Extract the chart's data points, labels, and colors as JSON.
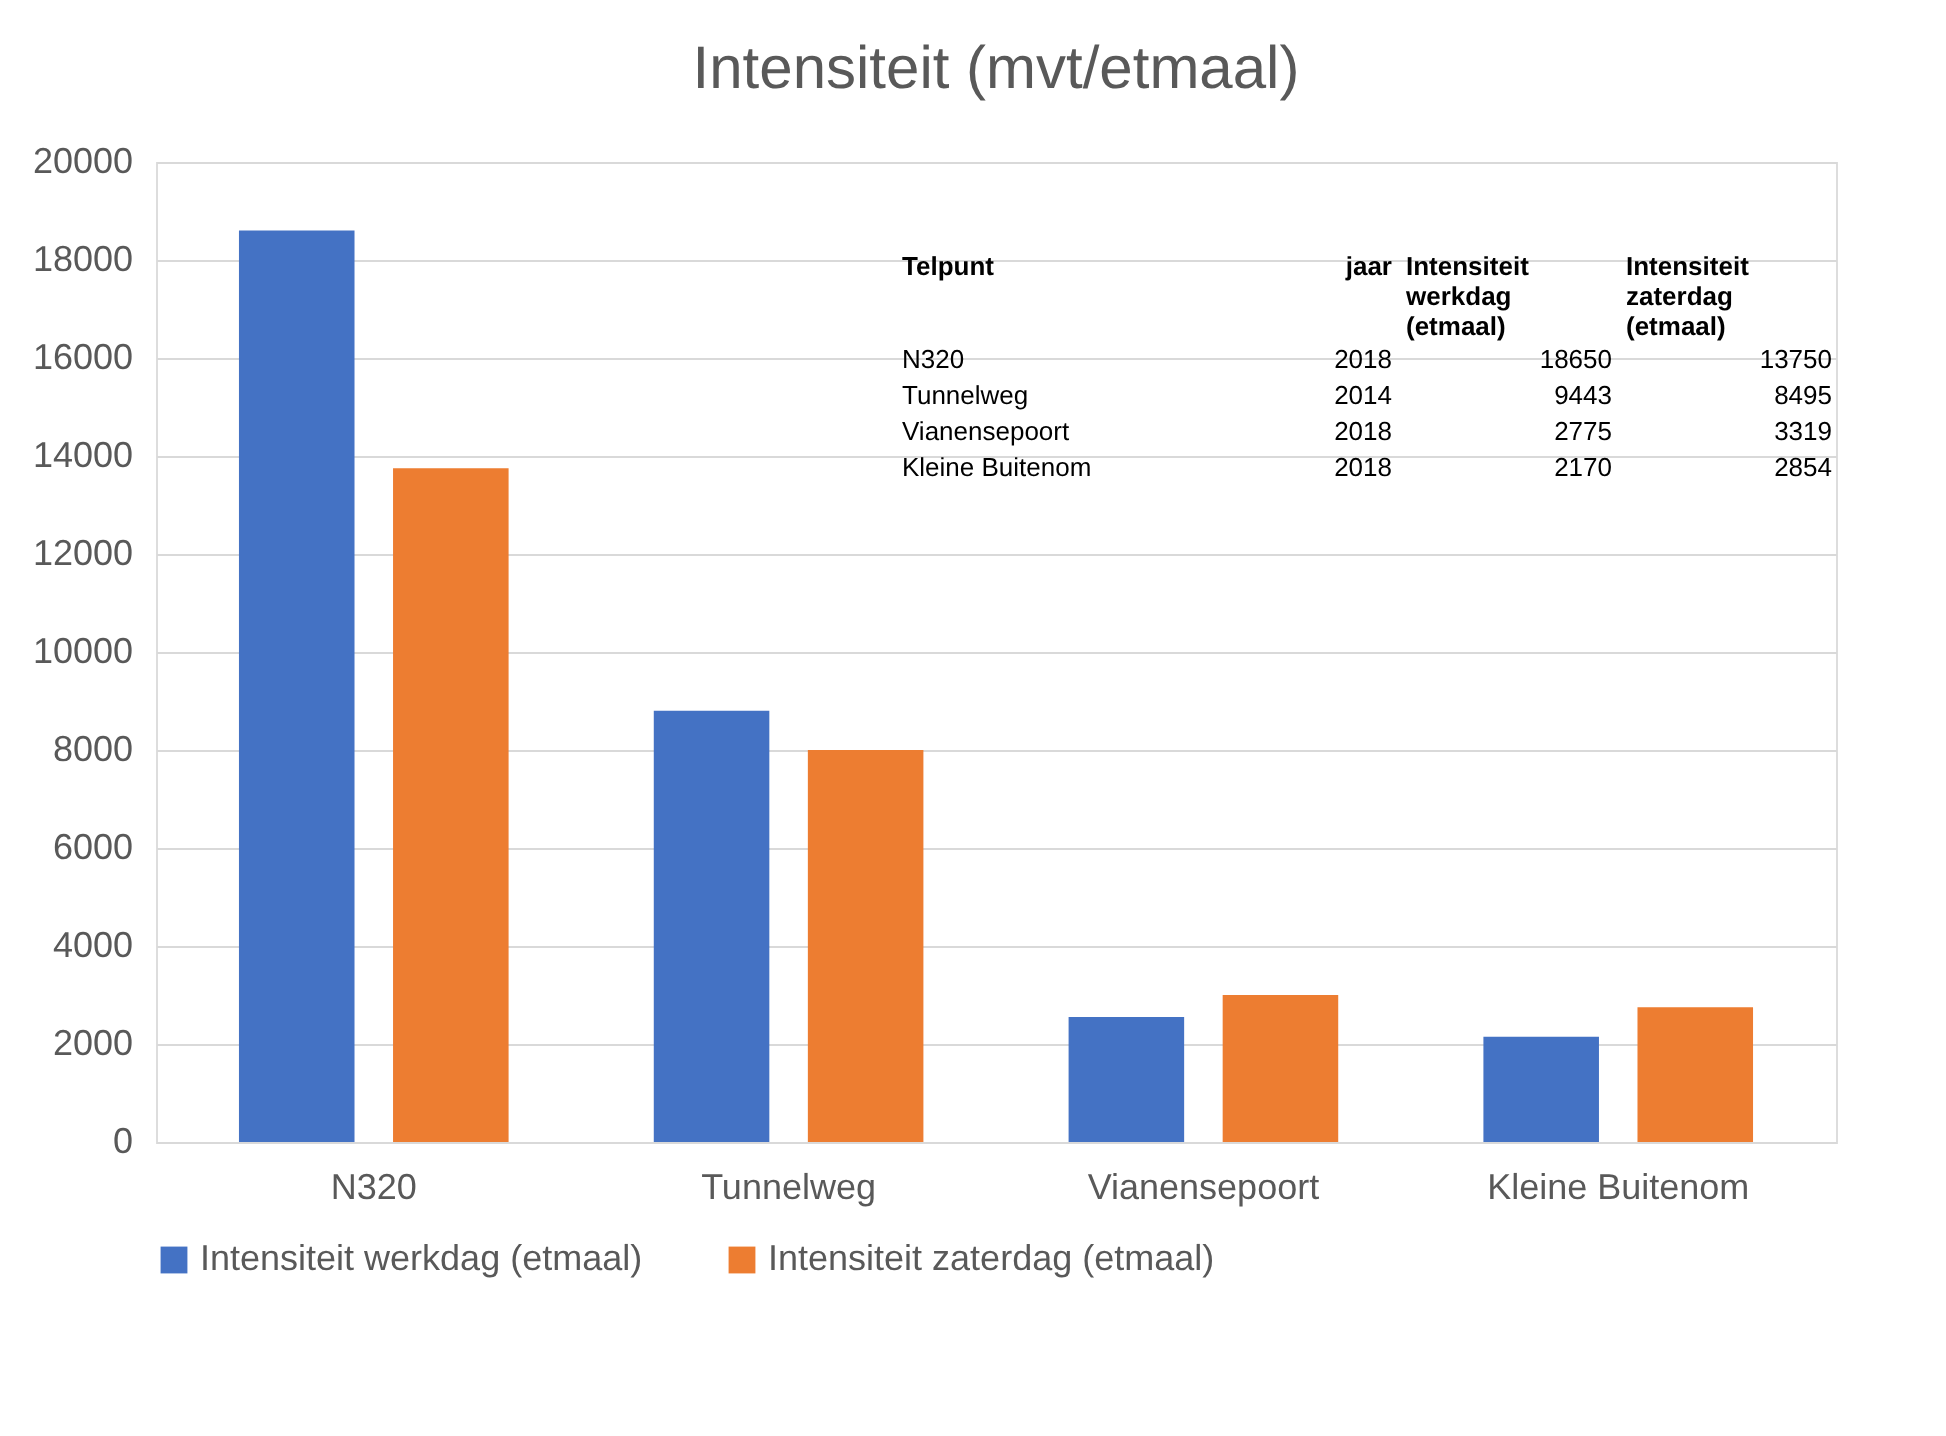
{
  "chart_data": {
    "type": "bar",
    "title": "Intensiteit (mvt/etmaal)",
    "categories": [
      "N320",
      "Tunnelweg",
      "Vianensepoort",
      "Kleine Buitenom"
    ],
    "series": [
      {
        "name": "Intensiteit werkdag (etmaal)",
        "color": "#4472c4",
        "values": [
          18600,
          8800,
          2550,
          2150
        ]
      },
      {
        "name": "Intensiteit zaterdag (etmaal)",
        "color": "#ed7d31",
        "values": [
          13750,
          8000,
          3000,
          2750
        ]
      }
    ],
    "ylim": [
      0,
      20000
    ],
    "yticks": [
      0,
      2000,
      4000,
      6000,
      8000,
      10000,
      12000,
      14000,
      16000,
      18000,
      20000
    ],
    "grid": "y",
    "legend": "bottom",
    "annotations": [
      "Telpunt",
      "jaar",
      "Intensiteit\nwerkdag\n(etmaal)",
      "Intensiteit\nzaterdag\n(etmaal)",
      "N320",
      "2018",
      "18650",
      "13750",
      "Tunnelweg",
      "2014",
      "9443",
      "8495",
      "Vianensepoort",
      "2018",
      "2775",
      "3319",
      "Kleine Buitenom",
      "2018",
      "2170",
      "2854"
    ]
  }
}
